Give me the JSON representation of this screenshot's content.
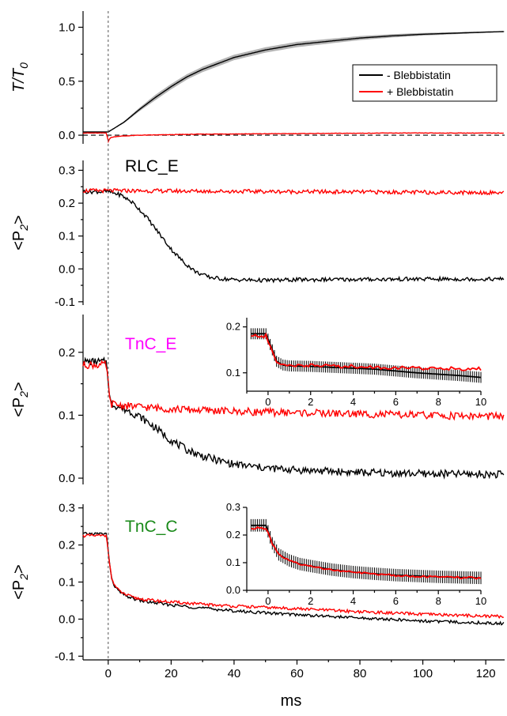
{
  "colors": {
    "minus_blebbistatin": "#000000",
    "plus_blebbistatin": "#ff0000",
    "minus_band": "#b4b4b4",
    "rlc_label": "#000000",
    "tnc_e_label": "#ff00ff",
    "tnc_c_label": "#1a8a1a"
  },
  "x_axis": {
    "label": "ms",
    "ticks": [
      0,
      20,
      40,
      60,
      80,
      100,
      120
    ],
    "range": [
      -8,
      126
    ],
    "dashed_line_at": 0
  },
  "chart_data": [
    {
      "type": "line",
      "panel": "tension",
      "ylabel_base": "T/T",
      "ylabel_sub": "0",
      "ylim": [
        -0.08,
        1.15
      ],
      "yticks": [
        "0.0",
        "0.5",
        "1.0"
      ],
      "yticks_values": [
        0.0,
        0.5,
        1.0
      ],
      "dashed_baseline": 0.0,
      "legend": {
        "position": "top-right",
        "entries": [
          "- Blebbistatin",
          "+ Blebbistatin"
        ]
      },
      "series": [
        {
          "name": "- Blebbistatin",
          "color": "#000000",
          "shaded_band": true,
          "x": [
            -8,
            0,
            5,
            10,
            15,
            20,
            25,
            30,
            40,
            50,
            60,
            70,
            80,
            90,
            100,
            110,
            120,
            126
          ],
          "y": [
            0.03,
            0.03,
            0.12,
            0.24,
            0.35,
            0.45,
            0.54,
            0.61,
            0.72,
            0.79,
            0.84,
            0.87,
            0.9,
            0.92,
            0.935,
            0.945,
            0.955,
            0.96
          ]
        },
        {
          "name": "+ Blebbistatin",
          "color": "#ff0000",
          "shaded_band": false,
          "x": [
            -8,
            -0.5,
            0,
            0.5,
            1,
            3,
            10,
            30,
            60,
            90,
            120,
            126
          ],
          "y": [
            0.02,
            0.02,
            -0.06,
            -0.03,
            -0.02,
            -0.01,
            0.0,
            0.01,
            0.015,
            0.02,
            0.02,
            0.02
          ]
        }
      ]
    },
    {
      "type": "line",
      "panel": "RLC_E",
      "label": "RLC_E",
      "ylabel_base": "<P",
      "ylabel_sub": "2",
      "ylabel_end": ">",
      "ylim": [
        -0.11,
        0.33
      ],
      "yticks": [
        "-0.1",
        "0.0",
        "0.1",
        "0.2",
        "0.3"
      ],
      "yticks_values": [
        -0.1,
        0.0,
        0.1,
        0.2,
        0.3
      ],
      "series": [
        {
          "name": "- Blebbistatin",
          "color": "#000000",
          "x": [
            -8,
            0,
            4,
            8,
            12,
            16,
            20,
            24,
            28,
            32,
            36,
            40,
            50,
            60,
            80,
            100,
            126
          ],
          "y": [
            0.235,
            0.235,
            0.225,
            0.2,
            0.16,
            0.11,
            0.06,
            0.02,
            -0.01,
            -0.025,
            -0.03,
            -0.033,
            -0.035,
            -0.033,
            -0.032,
            -0.031,
            -0.031
          ]
        },
        {
          "name": "+ Blebbistatin",
          "color": "#ff0000",
          "x": [
            -8,
            0,
            20,
            40,
            60,
            80,
            100,
            126
          ],
          "y": [
            0.238,
            0.238,
            0.237,
            0.236,
            0.235,
            0.234,
            0.233,
            0.232
          ]
        }
      ]
    },
    {
      "type": "line",
      "panel": "TnC_E",
      "label": "TnC_E",
      "ylabel_base": "<P",
      "ylabel_sub": "2",
      "ylabel_end": ">",
      "ylim": [
        -0.01,
        0.26
      ],
      "yticks": [
        "0.0",
        "0.1",
        "0.2"
      ],
      "yticks_values": [
        0.0,
        0.1,
        0.2
      ],
      "series": [
        {
          "name": "- Blebbistatin",
          "color": "#000000",
          "x": [
            -8,
            -0.5,
            0.5,
            1,
            3,
            6,
            10,
            15,
            20,
            25,
            30,
            35,
            40,
            50,
            60,
            80,
            100,
            126
          ],
          "y": [
            0.185,
            0.185,
            0.125,
            0.118,
            0.114,
            0.108,
            0.098,
            0.08,
            0.06,
            0.045,
            0.035,
            0.028,
            0.022,
            0.016,
            0.013,
            0.009,
            0.007,
            0.006
          ]
        },
        {
          "name": "+ Blebbistatin",
          "color": "#ff0000",
          "x": [
            -8,
            -0.5,
            0.5,
            1,
            5,
            20,
            40,
            60,
            80,
            100,
            126
          ],
          "y": [
            0.18,
            0.18,
            0.122,
            0.118,
            0.115,
            0.11,
            0.106,
            0.104,
            0.102,
            0.1,
            0.098
          ]
        }
      ],
      "inset": {
        "xlim": [
          -1,
          10
        ],
        "ylim": [
          0.06,
          0.22
        ],
        "xticks": [
          "0",
          "2",
          "4",
          "6",
          "8",
          "10"
        ],
        "xticks_values": [
          0,
          2,
          4,
          6,
          8,
          10
        ],
        "yticks": [
          "0.1",
          "0.2"
        ],
        "yticks_values": [
          0.1,
          0.2
        ],
        "series": [
          {
            "name": "- Blebbistatin",
            "color": "#000000",
            "error_bars": true,
            "x": [
              -0.8,
              -0.1,
              0.2,
              0.4,
              0.7,
              1,
              2,
              3,
              4,
              5,
              6,
              7,
              8,
              9,
              10
            ],
            "y": [
              0.185,
              0.185,
              0.15,
              0.125,
              0.117,
              0.115,
              0.114,
              0.112,
              0.11,
              0.108,
              0.104,
              0.1,
              0.097,
              0.094,
              0.09
            ]
          },
          {
            "name": "+ Blebbistatin",
            "color": "#ff0000",
            "error_bars": false,
            "x": [
              -0.8,
              -0.1,
              0.2,
              0.4,
              0.7,
              1,
              2,
              3,
              4,
              5,
              6,
              7,
              8,
              9,
              10
            ],
            "y": [
              0.18,
              0.18,
              0.145,
              0.122,
              0.118,
              0.117,
              0.116,
              0.115,
              0.114,
              0.112,
              0.111,
              0.11,
              0.11,
              0.109,
              0.108
            ]
          }
        ]
      }
    },
    {
      "type": "line",
      "panel": "TnC_C",
      "label": "TnC_C",
      "ylabel_base": "<P",
      "ylabel_sub": "2",
      "ylabel_end": ">",
      "ylim": [
        -0.11,
        0.31
      ],
      "yticks": [
        "-0.1",
        "0.0",
        "0.1",
        "0.2",
        "0.3"
      ],
      "yticks_values": [
        -0.1,
        0.0,
        0.1,
        0.2,
        0.3
      ],
      "series": [
        {
          "name": "- Blebbistatin",
          "color": "#000000",
          "x": [
            -8,
            -0.5,
            0.3,
            1,
            2,
            3,
            5,
            8,
            12,
            20,
            30,
            40,
            60,
            80,
            100,
            126
          ],
          "y": [
            0.23,
            0.23,
            0.16,
            0.11,
            0.09,
            0.078,
            0.065,
            0.055,
            0.047,
            0.038,
            0.03,
            0.022,
            0.012,
            0.003,
            -0.005,
            -0.012
          ]
        },
        {
          "name": "+ Blebbistatin",
          "color": "#ff0000",
          "x": [
            -8,
            -0.5,
            0.3,
            1,
            2,
            3,
            5,
            8,
            12,
            20,
            30,
            40,
            60,
            80,
            100,
            126
          ],
          "y": [
            0.225,
            0.225,
            0.16,
            0.112,
            0.092,
            0.08,
            0.068,
            0.058,
            0.052,
            0.046,
            0.04,
            0.035,
            0.028,
            0.02,
            0.013,
            0.007
          ]
        }
      ],
      "inset": {
        "xlim": [
          -1,
          10
        ],
        "ylim": [
          0.0,
          0.3
        ],
        "xticks": [
          "0",
          "2",
          "4",
          "6",
          "8",
          "10"
        ],
        "xticks_values": [
          0,
          2,
          4,
          6,
          8,
          10
        ],
        "yticks": [
          "0.0",
          "0.1",
          "0.2",
          "0.3"
        ],
        "yticks_values": [
          0.0,
          0.1,
          0.2,
          0.3
        ],
        "series": [
          {
            "name": "- Blebbistatin",
            "color": "#000000",
            "error_bars": true,
            "x": [
              -0.8,
              -0.1,
              0.2,
              0.5,
              1,
              1.5,
              2,
              3,
              4,
              5,
              6,
              7,
              8,
              9,
              10
            ],
            "y": [
              0.235,
              0.235,
              0.17,
              0.13,
              0.108,
              0.095,
              0.088,
              0.075,
              0.066,
              0.06,
              0.055,
              0.052,
              0.049,
              0.047,
              0.045
            ]
          },
          {
            "name": "+ Blebbistatin",
            "color": "#ff0000",
            "error_bars": false,
            "x": [
              -0.8,
              -0.1,
              0.2,
              0.5,
              1,
              1.5,
              2,
              3,
              4,
              5,
              6,
              7,
              8,
              9,
              10
            ],
            "y": [
              0.225,
              0.225,
              0.168,
              0.128,
              0.106,
              0.094,
              0.087,
              0.074,
              0.065,
              0.059,
              0.054,
              0.051,
              0.048,
              0.046,
              0.044
            ]
          }
        ]
      }
    }
  ]
}
